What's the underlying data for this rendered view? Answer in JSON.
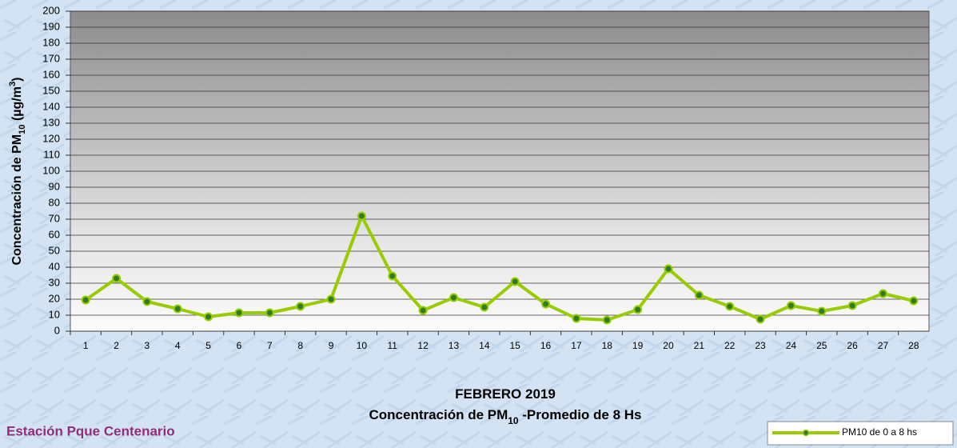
{
  "chart_data": {
    "type": "line",
    "title": [
      [
        {
          "text": "FEBRERO 2019"
        }
      ],
      [
        {
          "text": "Concentración de PM"
        },
        {
          "text": "10",
          "baseline": "sub"
        },
        {
          "text": " -Promedio de 8 Hs"
        }
      ]
    ],
    "y_label": [
      {
        "text": "Concentración de PM"
      },
      {
        "text": "10",
        "baseline": "sub"
      },
      {
        "text": " (µg/m"
      },
      {
        "text": "3",
        "baseline": "super"
      },
      {
        "text": ")"
      }
    ],
    "station": "Estación Pque Centenario",
    "categories": [
      "1",
      "2",
      "3",
      "4",
      "5",
      "6",
      "7",
      "8",
      "9",
      "10",
      "11",
      "12",
      "13",
      "14",
      "15",
      "16",
      "17",
      "18",
      "19",
      "20",
      "21",
      "22",
      "23",
      "24",
      "25",
      "26",
      "27",
      "28"
    ],
    "series": [
      {
        "name": "PM10 de 0 a 8 hs",
        "color": "#99cc00",
        "marker_color": "#2e7d1e",
        "values": [
          19.5,
          33,
          18.5,
          14,
          9,
          11.5,
          11.5,
          15.5,
          20,
          72,
          34.5,
          13,
          21,
          15,
          31,
          17,
          8,
          7,
          13.5,
          39,
          22.5,
          15.5,
          7.5,
          16,
          12.5,
          16,
          23.5,
          19
        ]
      }
    ],
    "ylim": [
      0,
      200
    ],
    "yticks": [
      0,
      10,
      20,
      30,
      40,
      50,
      60,
      70,
      80,
      90,
      100,
      110,
      120,
      130,
      140,
      150,
      160,
      170,
      180,
      190,
      200
    ],
    "grid": true,
    "legend": "bottom-right"
  }
}
